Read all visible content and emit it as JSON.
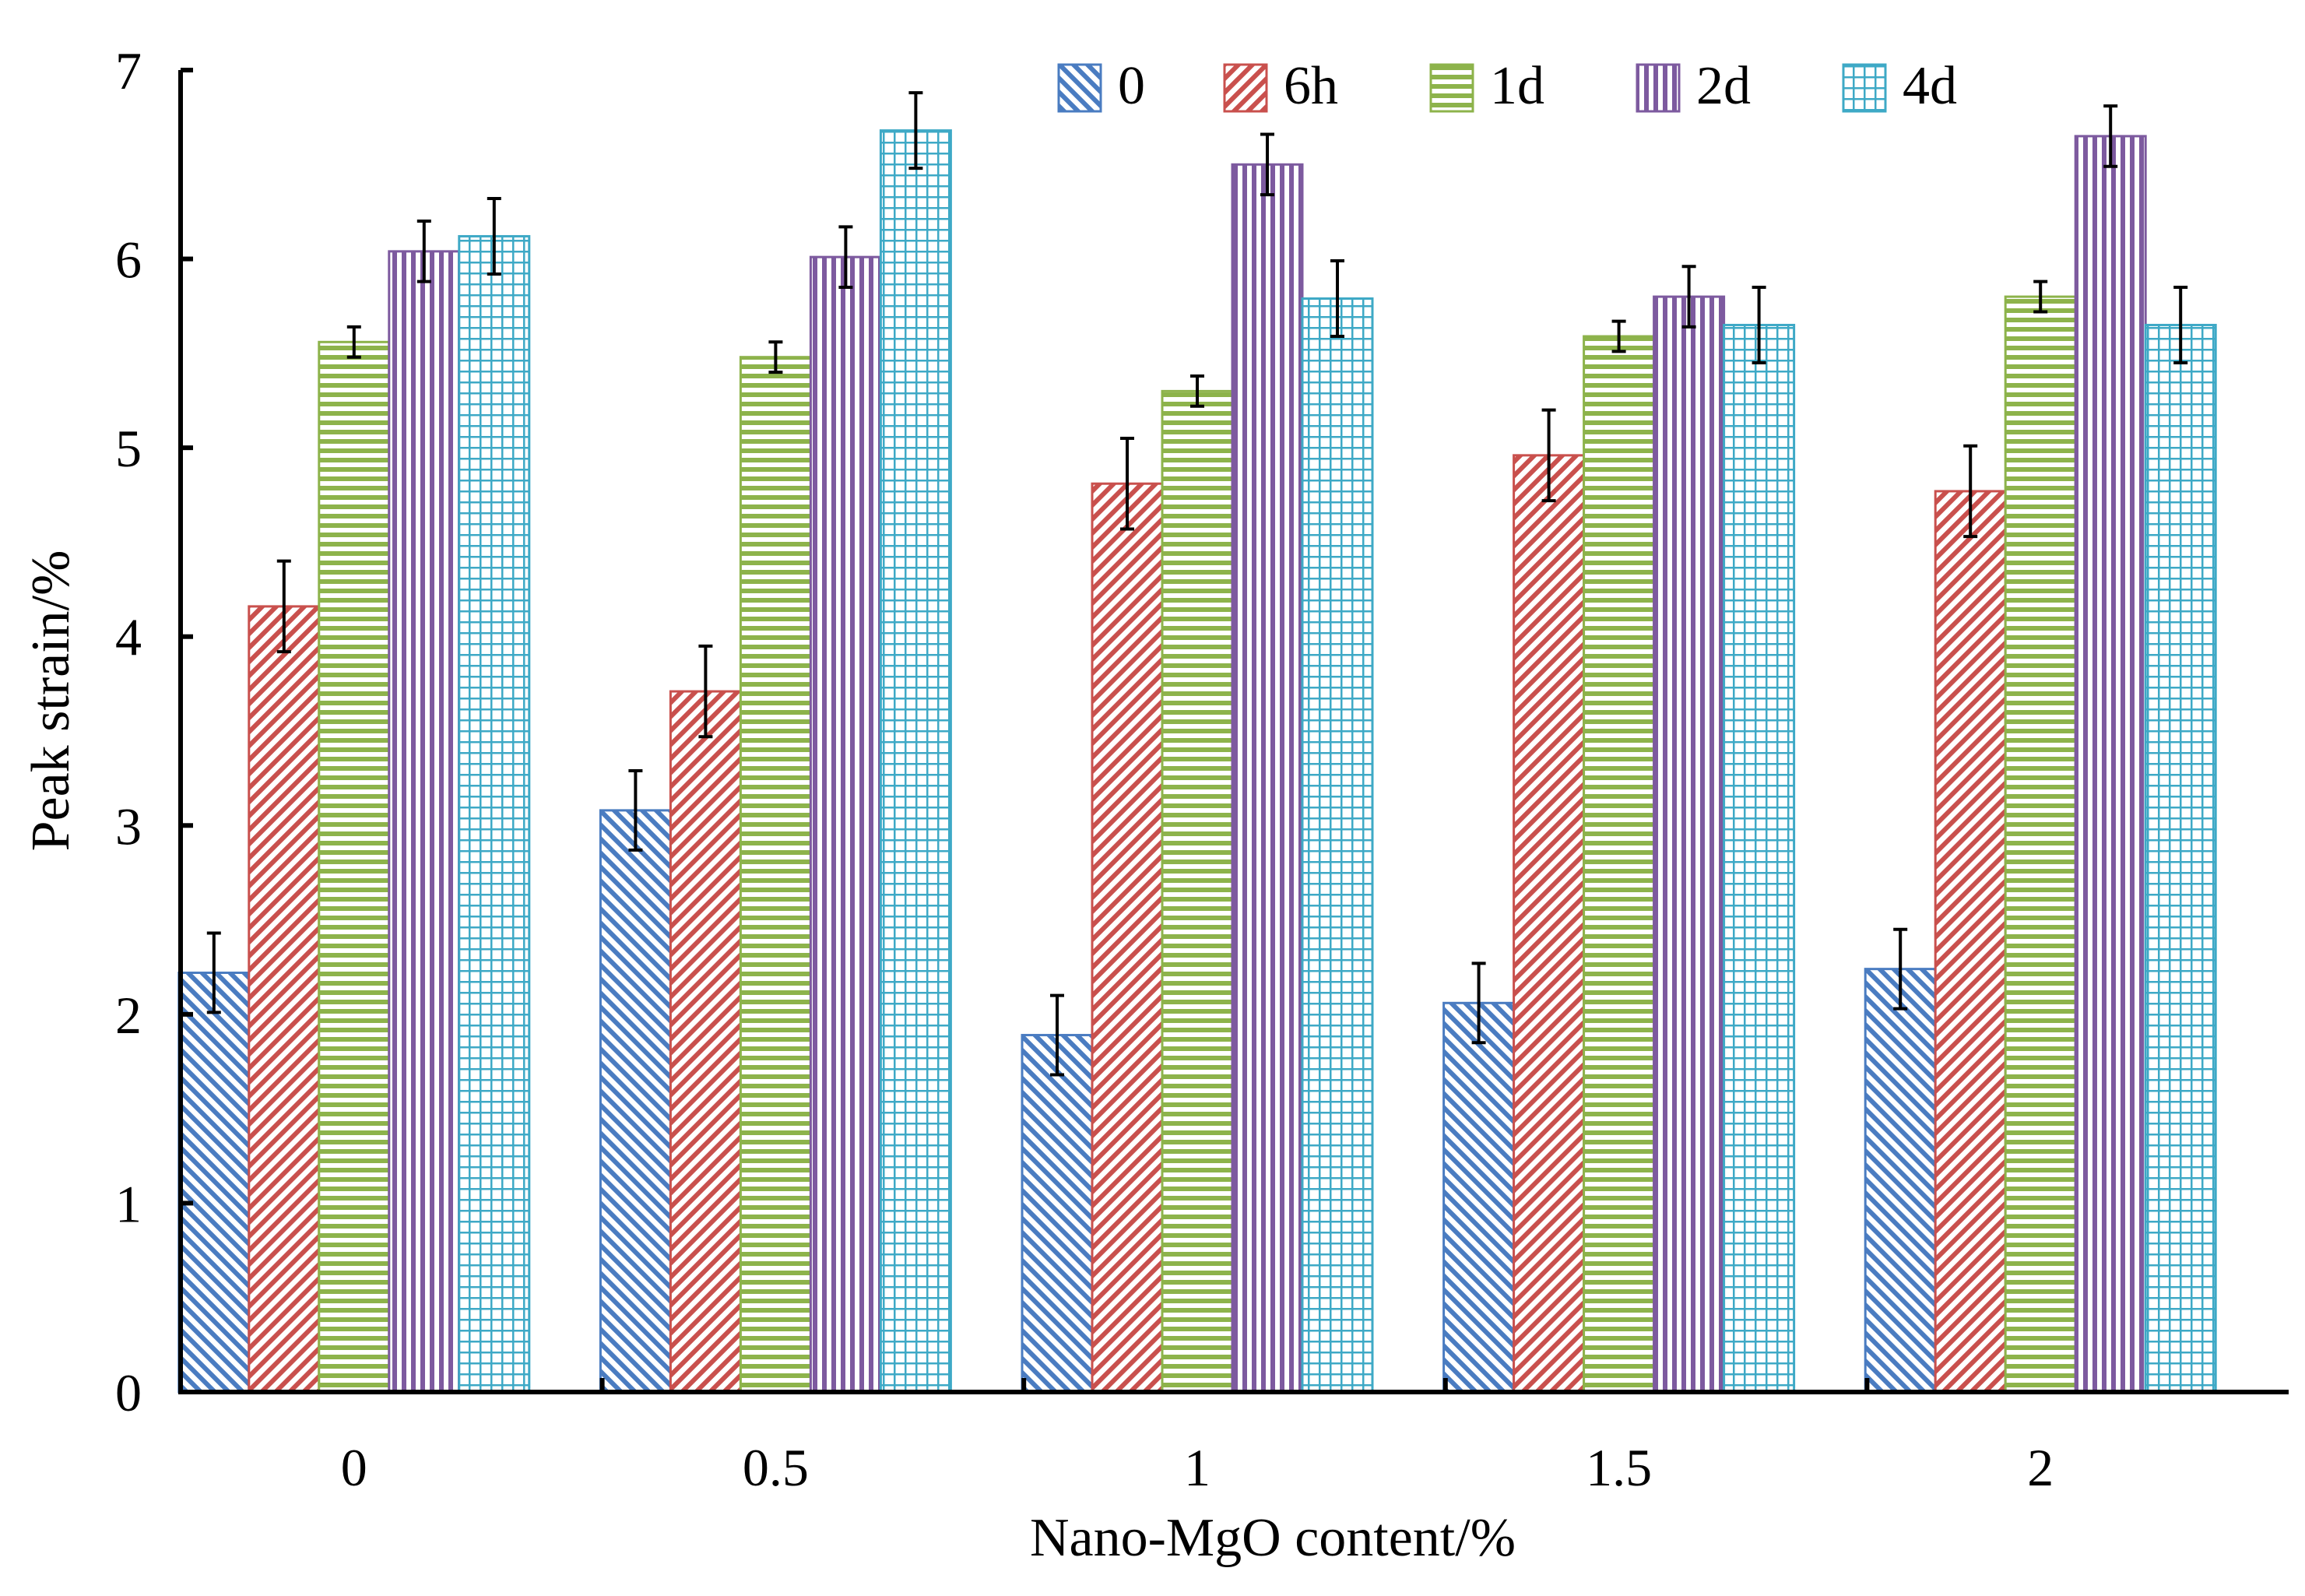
{
  "chart_data": {
    "type": "bar",
    "title": "",
    "xlabel": "Nano-MgO content/%",
    "ylabel": "Peak strain/%",
    "ylim": [
      0,
      7
    ],
    "yticks": [
      "0",
      "1",
      "2",
      "3",
      "4",
      "5",
      "6",
      "7"
    ],
    "categories": [
      "0",
      "0.5",
      "1",
      "1.5",
      "2"
    ],
    "legend_position": "top",
    "series": [
      {
        "name": "0",
        "pattern": "diagonal-back",
        "color": "#4a7cc1",
        "values": [
          2.22,
          3.08,
          1.89,
          2.06,
          2.24
        ],
        "errors": [
          0.21,
          0.21,
          0.21,
          0.21,
          0.21
        ]
      },
      {
        "name": "6h",
        "pattern": "diagonal-forward",
        "color": "#c9504d",
        "values": [
          4.16,
          3.71,
          4.81,
          4.96,
          4.77
        ],
        "errors": [
          0.24,
          0.24,
          0.24,
          0.24,
          0.24
        ]
      },
      {
        "name": "1d",
        "pattern": "horizontal",
        "color": "#8db34b",
        "values": [
          5.56,
          5.48,
          5.3,
          5.59,
          5.8
        ],
        "errors": [
          0.08,
          0.08,
          0.08,
          0.08,
          0.08
        ]
      },
      {
        "name": "2d",
        "pattern": "vertical",
        "color": "#7d5a9f",
        "values": [
          6.04,
          6.01,
          6.5,
          5.8,
          6.65
        ],
        "errors": [
          0.16,
          0.16,
          0.16,
          0.16,
          0.16
        ]
      },
      {
        "name": "4d",
        "pattern": "grid",
        "color": "#3ea9c6",
        "values": [
          6.12,
          6.68,
          5.79,
          5.65,
          5.65
        ],
        "errors": [
          0.2,
          0.2,
          0.2,
          0.2,
          0.2
        ]
      }
    ]
  }
}
